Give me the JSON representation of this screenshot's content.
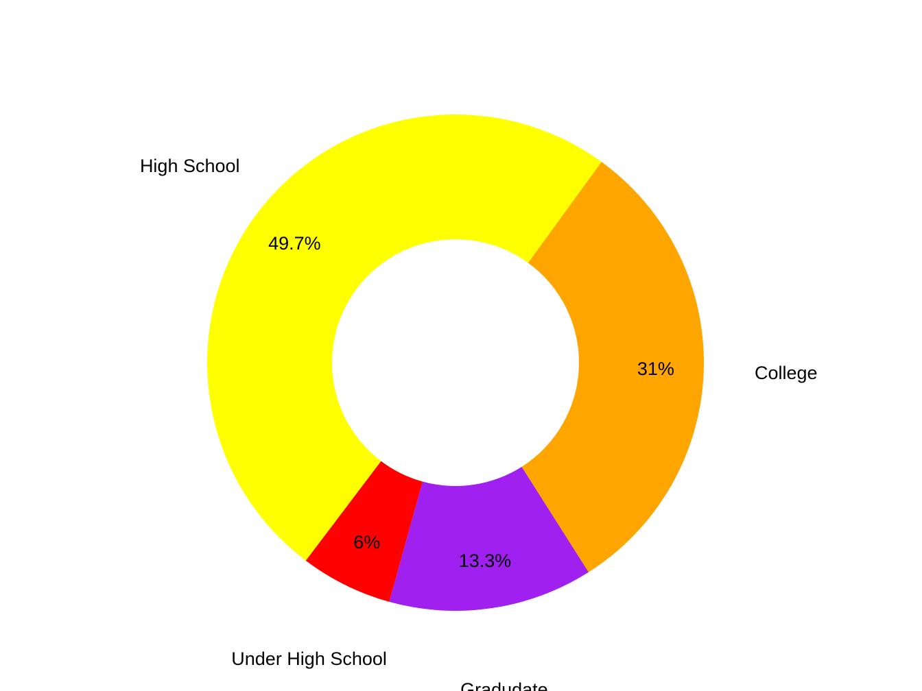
{
  "chart_data": {
    "type": "pie",
    "donut": true,
    "categories": [
      "College",
      "Gradudate",
      "Under High School",
      "High School"
    ],
    "values": [
      31.0,
      13.3,
      6.0,
      49.7
    ],
    "value_labels": [
      "31%",
      "13.3%",
      "6%",
      "49.7%"
    ],
    "colors": [
      "#FFA500",
      "#A020F0",
      "#FF0000",
      "#FFFF00"
    ],
    "start_angle_deg": -54,
    "direction": "clockwise",
    "legend": "none"
  }
}
